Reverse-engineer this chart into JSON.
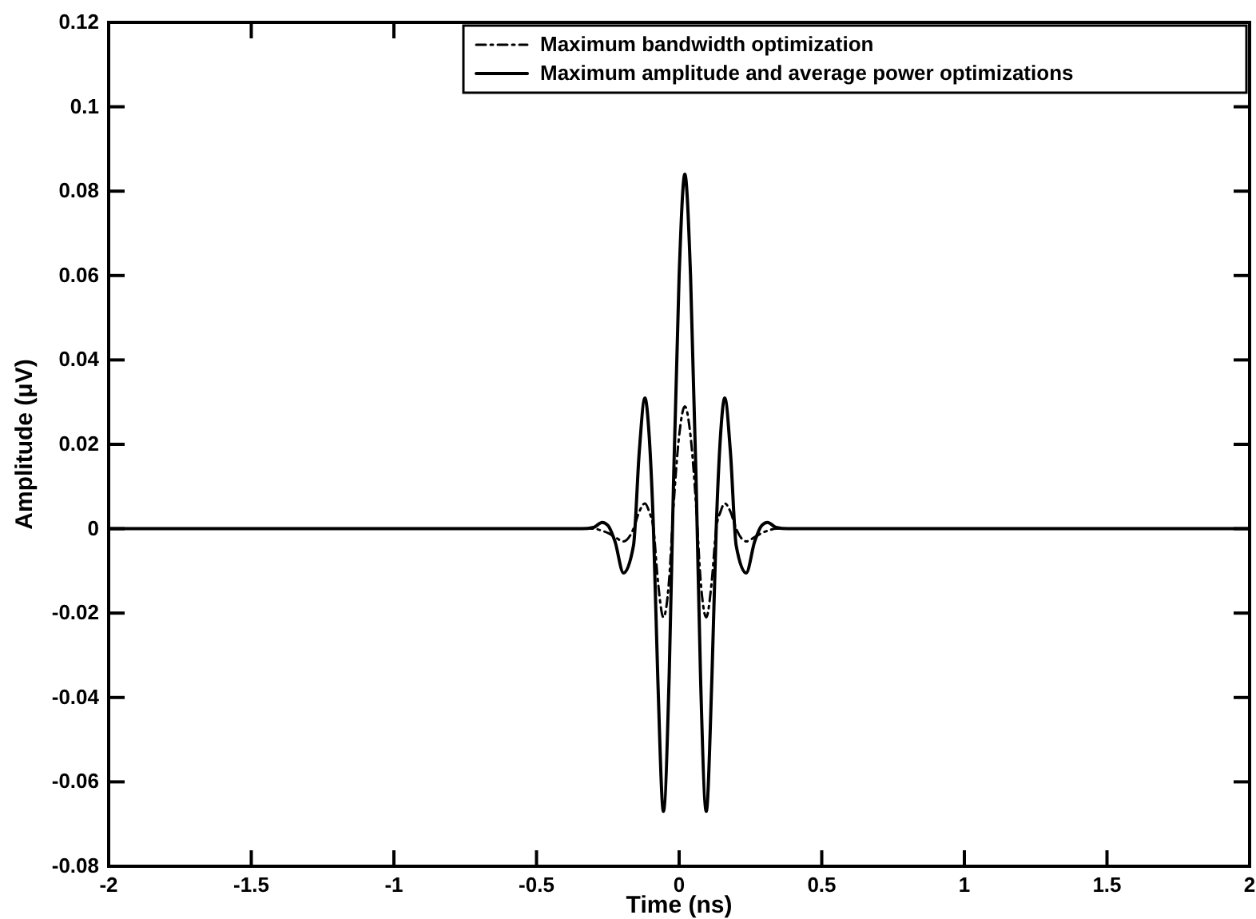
{
  "chart_data": {
    "type": "line",
    "xlabel": "Time (ns)",
    "ylabel": "Amplitude (μV)",
    "xlim": [
      -2,
      2
    ],
    "xticks": [
      -2,
      -1.5,
      -1,
      -0.5,
      0,
      0.5,
      1,
      1.5,
      2
    ],
    "ylim": [
      -0.08,
      0.12
    ],
    "yticks": [
      -0.08,
      -0.06,
      -0.04,
      -0.02,
      0,
      0.02,
      0.04,
      0.06,
      0.08,
      0.1,
      0.12
    ],
    "x": [
      -2,
      -0.34,
      -0.3,
      -0.27,
      -0.25,
      -0.225,
      -0.195,
      -0.16,
      -0.14,
      -0.12,
      -0.105,
      -0.09,
      -0.075,
      -0.055,
      -0.035,
      -0.02,
      0,
      0.02,
      0.04,
      0.06,
      0.075,
      0.095,
      0.115,
      0.13,
      0.145,
      0.16,
      0.18,
      0.2,
      0.235,
      0.265,
      0.29,
      0.31,
      0.34,
      0.38,
      2
    ],
    "legend": "top right",
    "grid": false,
    "series": [
      {
        "name": "Maximum bandwidth optimization",
        "color": "#000000",
        "line_style": "dashed",
        "values": [
          0,
          0,
          0,
          -0.0005,
          -0.001,
          -0.002,
          -0.003,
          0,
          0.004,
          0.006,
          0.004,
          0,
          -0.012,
          -0.021,
          -0.012,
          0.005,
          0.022,
          0.029,
          0.022,
          0.005,
          -0.012,
          -0.021,
          -0.012,
          0,
          0.004,
          0.006,
          0.004,
          0,
          -0.003,
          -0.002,
          -0.001,
          -0.0005,
          0,
          0,
          0
        ]
      },
      {
        "name": "Maximum amplitude and average power optimizations",
        "color": "#000000",
        "line_style": "solid",
        "values": [
          0,
          0,
          0.0003,
          0.0015,
          0.0008,
          -0.003,
          -0.0105,
          -0.004,
          0.018,
          0.031,
          0.022,
          0,
          -0.035,
          -0.067,
          -0.035,
          0.01,
          0.06,
          0.084,
          0.06,
          0.01,
          -0.035,
          -0.067,
          -0.035,
          0,
          0.022,
          0.031,
          0.018,
          -0.004,
          -0.0105,
          -0.003,
          0.0008,
          0.0015,
          0.0003,
          0,
          0
        ]
      }
    ]
  }
}
